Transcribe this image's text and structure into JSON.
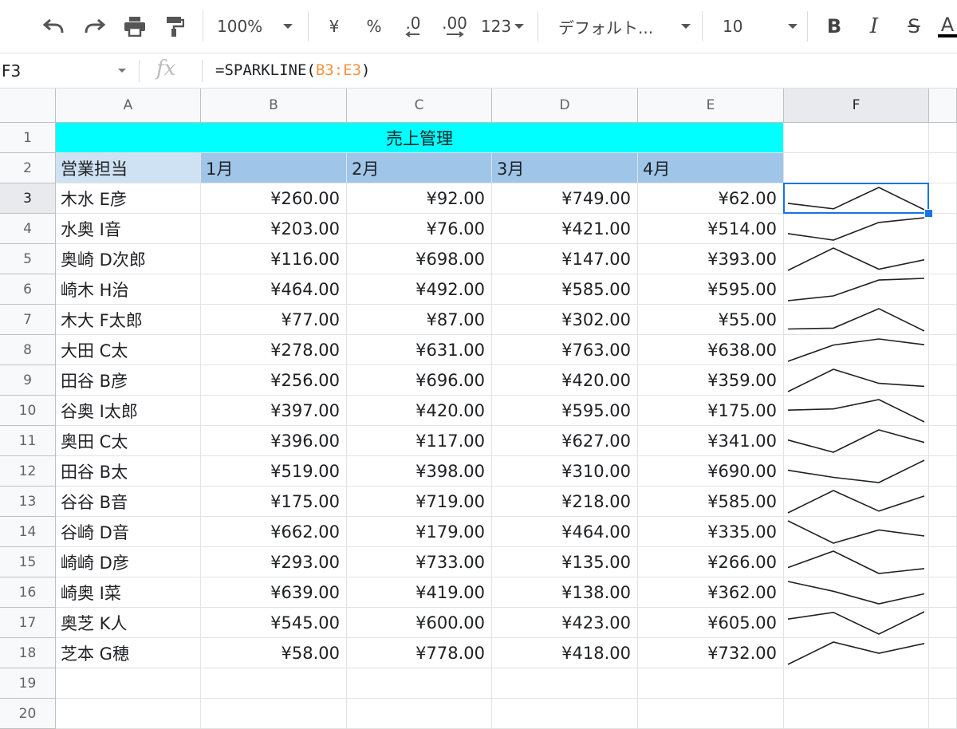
{
  "toolbar": {
    "zoom": "100%",
    "currency": "¥",
    "percent": "%",
    "dec_decrease": ".0",
    "dec_increase": ".00",
    "more_formats": "123",
    "font": "デフォルト...",
    "font_size": "10"
  },
  "formula_bar": {
    "name_box": "F3",
    "fx": "fx",
    "formula_prefix": "=SPARKLINE(",
    "formula_ref": "B3:E3",
    "formula_suffix": ")"
  },
  "columns": [
    "A",
    "B",
    "C",
    "D",
    "E",
    "F"
  ],
  "row_numbers": [
    "1",
    "2",
    "3",
    "4",
    "5",
    "6",
    "7",
    "8",
    "9",
    "10",
    "11",
    "12",
    "13",
    "14",
    "15",
    "16",
    "17",
    "18",
    "19",
    "20"
  ],
  "sheet": {
    "title": "売上管理",
    "header": [
      "営業担当",
      "1月",
      "2月",
      "3月",
      "4月"
    ],
    "rows": [
      {
        "name": "木水 E彦",
        "v": [
          "¥260.00",
          "¥92.00",
          "¥749.00",
          "¥62.00"
        ]
      },
      {
        "name": "水奥 I音",
        "v": [
          "¥203.00",
          "¥76.00",
          "¥421.00",
          "¥514.00"
        ]
      },
      {
        "name": "奥崎 D次郎",
        "v": [
          "¥116.00",
          "¥698.00",
          "¥147.00",
          "¥393.00"
        ]
      },
      {
        "name": "崎木 H治",
        "v": [
          "¥464.00",
          "¥492.00",
          "¥585.00",
          "¥595.00"
        ]
      },
      {
        "name": "木大 F太郎",
        "v": [
          "¥77.00",
          "¥87.00",
          "¥302.00",
          "¥55.00"
        ]
      },
      {
        "name": "大田 C太",
        "v": [
          "¥278.00",
          "¥631.00",
          "¥763.00",
          "¥638.00"
        ]
      },
      {
        "name": "田谷 B彦",
        "v": [
          "¥256.00",
          "¥696.00",
          "¥420.00",
          "¥359.00"
        ]
      },
      {
        "name": "谷奥 I太郎",
        "v": [
          "¥397.00",
          "¥420.00",
          "¥595.00",
          "¥175.00"
        ]
      },
      {
        "name": "奥田 C太",
        "v": [
          "¥396.00",
          "¥117.00",
          "¥627.00",
          "¥341.00"
        ]
      },
      {
        "name": "田谷 B太",
        "v": [
          "¥519.00",
          "¥398.00",
          "¥310.00",
          "¥690.00"
        ]
      },
      {
        "name": "谷谷 B音",
        "v": [
          "¥175.00",
          "¥719.00",
          "¥218.00",
          "¥585.00"
        ]
      },
      {
        "name": "谷崎 D音",
        "v": [
          "¥662.00",
          "¥179.00",
          "¥464.00",
          "¥335.00"
        ]
      },
      {
        "name": "崎崎 D彦",
        "v": [
          "¥293.00",
          "¥733.00",
          "¥135.00",
          "¥266.00"
        ]
      },
      {
        "name": "崎奥 I菜",
        "v": [
          "¥639.00",
          "¥419.00",
          "¥138.00",
          "¥362.00"
        ]
      },
      {
        "name": "奥芝 K人",
        "v": [
          "¥545.00",
          "¥600.00",
          "¥423.00",
          "¥605.00"
        ]
      },
      {
        "name": "芝本 G穂",
        "v": [
          "¥58.00",
          "¥778.00",
          "¥418.00",
          "¥732.00"
        ]
      }
    ],
    "sparkline_values": [
      [
        260,
        92,
        749,
        62
      ],
      [
        203,
        76,
        421,
        514
      ],
      [
        116,
        698,
        147,
        393
      ],
      [
        464,
        492,
        585,
        595
      ],
      [
        77,
        87,
        302,
        55
      ],
      [
        278,
        631,
        763,
        638
      ],
      [
        256,
        696,
        420,
        359
      ],
      [
        397,
        420,
        595,
        175
      ],
      [
        396,
        117,
        627,
        341
      ],
      [
        519,
        398,
        310,
        690
      ],
      [
        175,
        719,
        218,
        585
      ],
      [
        662,
        179,
        464,
        335
      ],
      [
        293,
        733,
        135,
        266
      ],
      [
        639,
        419,
        138,
        362
      ],
      [
        545,
        600,
        423,
        605
      ],
      [
        58,
        778,
        418,
        732
      ]
    ]
  },
  "selection": {
    "cell": "F3"
  },
  "colors": {
    "title_bg": "#00ffff",
    "header_name_bg": "#cfe2f3",
    "header_month_bg": "#9fc5e8",
    "selection": "#1a73e8",
    "sparkline": "#202124"
  }
}
